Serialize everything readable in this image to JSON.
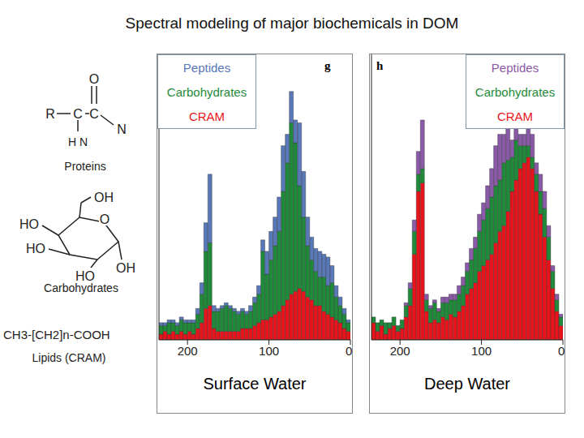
{
  "title": "Spectral modeling of major biochemicals in DOM",
  "structures": [
    {
      "name": "Proteins",
      "atoms": [
        "O",
        "R",
        "C",
        "C",
        "N",
        "H N"
      ]
    },
    {
      "name": "Carbohydrates",
      "atoms": [
        "OH",
        "O",
        "HO",
        "HO",
        "HO",
        "OH"
      ]
    },
    {
      "name": "Lipids (CRAM)",
      "formula": "CH3-[CH2]n-COOH"
    }
  ],
  "chart_data": [
    {
      "type": "bar",
      "stacked": true,
      "annotations": [
        "g"
      ],
      "xlabel": "Surface Water",
      "legend": "top left",
      "tick_labels": "x",
      "xlim": [
        235,
        0
      ],
      "xticks": [
        200,
        100,
        0
      ],
      "ylim": [
        0,
        100
      ],
      "x": [
        232.5,
        227.5,
        222.5,
        217.5,
        212.5,
        207.5,
        202.5,
        197.5,
        192.5,
        187.5,
        182.5,
        177.5,
        172.5,
        167.5,
        162.5,
        157.5,
        152.5,
        147.5,
        142.5,
        137.5,
        132.5,
        127.5,
        122.5,
        117.5,
        112.5,
        107.5,
        102.5,
        97.5,
        92.5,
        87.5,
        82.5,
        77.5,
        72.5,
        67.5,
        62.5,
        57.5,
        52.5,
        47.5,
        42.5,
        37.5,
        32.5,
        27.5,
        22.5,
        17.5,
        12.5,
        7.5,
        2.5
      ],
      "series": [
        {
          "name": "CRAM",
          "color": "#e8141b",
          "values": [
            2,
            3,
            2,
            3,
            2,
            3,
            2,
            3,
            2,
            4,
            6,
            11,
            12,
            4,
            3,
            3,
            3,
            3,
            3,
            3,
            4,
            4,
            4,
            5,
            6,
            7,
            7,
            8,
            9,
            10,
            12,
            14,
            16,
            17,
            18,
            17,
            15,
            14,
            12,
            12,
            10,
            9,
            8,
            7,
            6,
            4,
            3
          ]
        },
        {
          "name": "Carbohydrates",
          "color": "#1f8a3a",
          "values": [
            3,
            2,
            4,
            3,
            3,
            4,
            4,
            3,
            4,
            5,
            10,
            20,
            22,
            6,
            7,
            8,
            9,
            8,
            7,
            6,
            6,
            5,
            6,
            8,
            10,
            24,
            16,
            20,
            24,
            28,
            40,
            48,
            60,
            52,
            36,
            26,
            18,
            14,
            12,
            10,
            12,
            10,
            12,
            8,
            6,
            5,
            3
          ]
        },
        {
          "name": "Peptides",
          "color": "#5878b8",
          "values": [
            1,
            1,
            1,
            1,
            1,
            1,
            1,
            1,
            1,
            2,
            4,
            10,
            24,
            2,
            1,
            1,
            1,
            1,
            1,
            1,
            1,
            1,
            2,
            2,
            3,
            4,
            8,
            10,
            10,
            12,
            16,
            10,
            11,
            8,
            22,
            16,
            10,
            8,
            8,
            9,
            8,
            10,
            6,
            4,
            3,
            2,
            1
          ]
        }
      ]
    },
    {
      "type": "bar",
      "stacked": true,
      "annotations": [
        "h"
      ],
      "xlabel": "Deep Water",
      "legend": "top right",
      "tick_labels": "x",
      "xlim": [
        235,
        0
      ],
      "xticks": [
        200,
        100,
        0
      ],
      "ylim": [
        0,
        100
      ],
      "x": [
        232.5,
        227.5,
        222.5,
        217.5,
        212.5,
        207.5,
        202.5,
        197.5,
        192.5,
        187.5,
        182.5,
        177.5,
        172.5,
        167.5,
        162.5,
        157.5,
        152.5,
        147.5,
        142.5,
        137.5,
        132.5,
        127.5,
        122.5,
        117.5,
        112.5,
        107.5,
        102.5,
        97.5,
        92.5,
        87.5,
        82.5,
        77.5,
        72.5,
        67.5,
        62.5,
        57.5,
        52.5,
        47.5,
        42.5,
        37.5,
        32.5,
        27.5,
        22.5,
        17.5,
        12.5,
        7.5,
        2.5
      ],
      "series": [
        {
          "name": "CRAM",
          "color": "#e8141b",
          "values": [
            6,
            3,
            5,
            2,
            4,
            5,
            3,
            4,
            8,
            12,
            30,
            52,
            55,
            10,
            6,
            7,
            6,
            8,
            7,
            9,
            8,
            10,
            12,
            16,
            18,
            20,
            24,
            26,
            28,
            30,
            34,
            38,
            40,
            45,
            52,
            56,
            60,
            62,
            64,
            60,
            52,
            44,
            36,
            28,
            18,
            10,
            5
          ]
        },
        {
          "name": "Carbohydrates",
          "color": "#1f8a3a",
          "values": [
            2,
            3,
            2,
            4,
            2,
            3,
            2,
            3,
            4,
            6,
            8,
            6,
            5,
            4,
            5,
            6,
            4,
            5,
            6,
            5,
            6,
            6,
            7,
            8,
            10,
            12,
            14,
            16,
            18,
            20,
            20,
            18,
            22,
            18,
            12,
            14,
            8,
            6,
            4,
            4,
            6,
            8,
            10,
            8,
            6,
            4,
            3
          ]
        },
        {
          "name": "Peptides",
          "color": "#8a5aa8",
          "values": [
            0,
            0,
            0,
            0,
            0,
            0,
            0,
            0,
            1,
            2,
            4,
            8,
            17,
            2,
            1,
            1,
            1,
            2,
            2,
            2,
            2,
            3,
            3,
            3,
            4,
            4,
            6,
            6,
            8,
            10,
            14,
            16,
            10,
            12,
            6,
            4,
            4,
            4,
            6,
            8,
            4,
            6,
            6,
            4,
            2,
            2,
            1
          ]
        }
      ]
    }
  ]
}
